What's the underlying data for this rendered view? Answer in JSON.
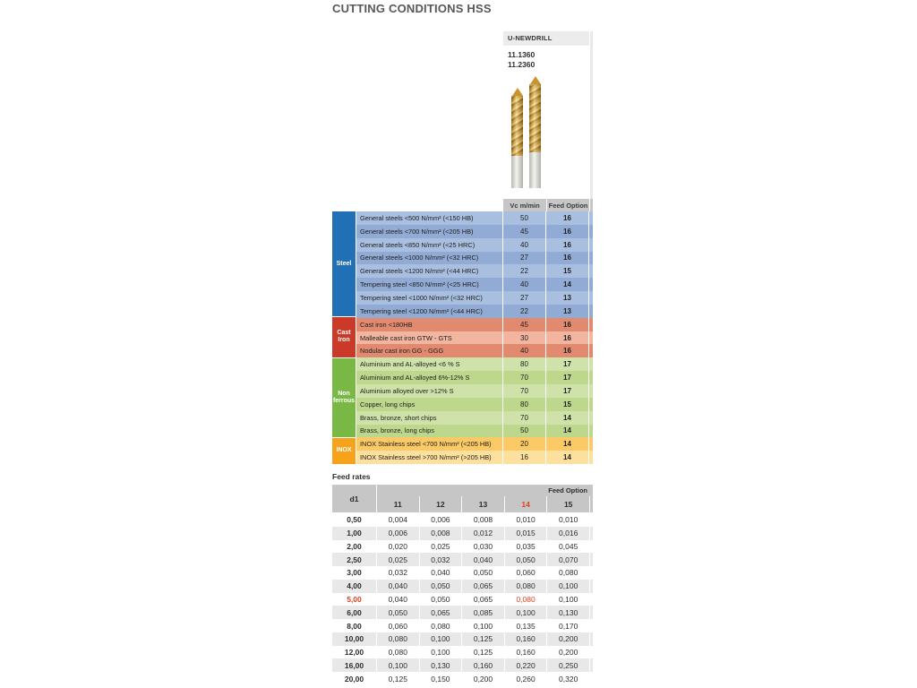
{
  "page": {
    "title": "CUTTING CONDITIONS HSS"
  },
  "product": {
    "name": "U-NEWDRILL",
    "codes": [
      "11.1360",
      "11.2360"
    ],
    "col_headers": [
      "Vc m/min",
      "Feed Option"
    ]
  },
  "materials": {
    "groups": [
      {
        "label": "Steel",
        "label_color": "#2170b5",
        "row_colors": [
          "#a9bfdf",
          "#92abd4"
        ],
        "rows": [
          {
            "desc": "General steels <500 N/mm²  (<150 HB)",
            "vc": "50",
            "feed": "16"
          },
          {
            "desc": "General steels <700 N/mm²  (<205 HB)",
            "vc": "45",
            "feed": "16"
          },
          {
            "desc": "General steels <850 N/mm² (<25 HRC)",
            "vc": "40",
            "feed": "16"
          },
          {
            "desc": "General steels <1000 N/mm² (<32 HRC)",
            "vc": "27",
            "feed": "16"
          },
          {
            "desc": "General steels <1200 N/mm²  (<44 HRC)",
            "vc": "22",
            "feed": "15"
          },
          {
            "desc": "Tempering steel  <850 N/mm²  (<25 HRC)",
            "vc": "40",
            "feed": "14"
          },
          {
            "desc": "Tempering steel  <1000 N/mm²  (<32 HRC)",
            "vc": "27",
            "feed": "13"
          },
          {
            "desc": "Tempering steel  <1200 N/mm²  (<44 HRC)",
            "vc": "22",
            "feed": "13"
          }
        ]
      },
      {
        "label": "Cast Iron",
        "label_color": "#cb3a28",
        "row_colors": [
          "#e28a70",
          "#f2b5a0"
        ],
        "rows": [
          {
            "desc": "Cast iron <180HB",
            "vc": "45",
            "feed": "16"
          },
          {
            "desc": "Malleable cast iron GTW - GTS",
            "vc": "30",
            "feed": "16"
          },
          {
            "desc": "Nodular cast iron  GG - GGG",
            "vc": "40",
            "feed": "16"
          }
        ]
      },
      {
        "label": "Non ferrous",
        "label_color": "#79b844",
        "row_colors": [
          "#cfe2a9",
          "#bdd78c"
        ],
        "rows": [
          {
            "desc": "Aluminium and AL-alloyed   <6 % S",
            "vc": "80",
            "feed": "17"
          },
          {
            "desc": "Aluminium and AL-alloyed 6%-12% S",
            "vc": "70",
            "feed": "17"
          },
          {
            "desc": "Aluminium alloyed over   >12% S",
            "vc": "70",
            "feed": "17"
          },
          {
            "desc": "Copper, long chips",
            "vc": "80",
            "feed": "15"
          },
          {
            "desc": "Brass, bronze, short chips",
            "vc": "70",
            "feed": "14"
          },
          {
            "desc": "Brass, bronze, long chips",
            "vc": "50",
            "feed": "14"
          }
        ]
      },
      {
        "label": "INOX",
        "label_color": "#f6a31c",
        "row_colors": [
          "#fbca67",
          "#fce09e"
        ],
        "rows": [
          {
            "desc": "INOX Stainless steel  <700 N/mm² (<205 HB)",
            "vc": "20",
            "feed": "14"
          },
          {
            "desc": "INOX Stainless steel  >700 N/mm² (>205 HB)",
            "vc": "16",
            "feed": "14"
          }
        ]
      }
    ]
  },
  "feed_rates": {
    "title": "Feed rates",
    "corner_label": "d1",
    "span_label": "Feed Option",
    "columns": [
      "11",
      "12",
      "13",
      "14",
      "15"
    ],
    "highlight_col_index": 3,
    "highlight_color": "#e0401f",
    "rows": [
      {
        "d1": "0,50",
        "values": [
          "0,004",
          "0,006",
          "0,008",
          "0,010",
          "0,010"
        ]
      },
      {
        "d1": "1,00",
        "values": [
          "0,006",
          "0,008",
          "0,012",
          "0,015",
          "0,016"
        ]
      },
      {
        "d1": "2,00",
        "values": [
          "0,020",
          "0,025",
          "0,030",
          "0,035",
          "0,045"
        ]
      },
      {
        "d1": "2,50",
        "values": [
          "0,025",
          "0,032",
          "0,040",
          "0,050",
          "0,070"
        ]
      },
      {
        "d1": "3,00",
        "values": [
          "0,032",
          "0,040",
          "0,050",
          "0,060",
          "0,080"
        ]
      },
      {
        "d1": "4,00",
        "values": [
          "0,040",
          "0,050",
          "0,065",
          "0,080",
          "0,100"
        ]
      },
      {
        "d1": "5,00",
        "values": [
          "0,040",
          "0,050",
          "0,065",
          "0,080",
          "0,100"
        ],
        "highlight_d1": true,
        "highlight_value_index": 3
      },
      {
        "d1": "6,00",
        "values": [
          "0,050",
          "0,065",
          "0,085",
          "0,100",
          "0,130"
        ]
      },
      {
        "d1": "8,00",
        "values": [
          "0,060",
          "0,080",
          "0,100",
          "0,135",
          "0,170"
        ]
      },
      {
        "d1": "10,00",
        "values": [
          "0,080",
          "0,100",
          "0,125",
          "0,160",
          "0,200"
        ]
      },
      {
        "d1": "12,00",
        "values": [
          "0,080",
          "0,100",
          "0,125",
          "0,160",
          "0,200"
        ]
      },
      {
        "d1": "16,00",
        "values": [
          "0,100",
          "0,130",
          "0,160",
          "0,220",
          "0,250"
        ]
      },
      {
        "d1": "20,00",
        "values": [
          "0,125",
          "0,150",
          "0,200",
          "0,260",
          "0,320"
        ]
      }
    ]
  }
}
